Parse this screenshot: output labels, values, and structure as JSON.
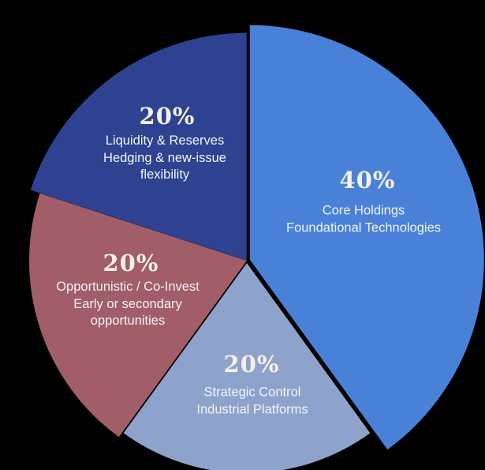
{
  "background_color": "#000000",
  "text_colors": {
    "percent_numerals": "#F6F1E6",
    "description_labels": "#F3F4F8"
  },
  "chart_data": {
    "type": "pie",
    "title": "",
    "total_percent": 100,
    "start_angle_deg": 0,
    "direction": "clockwise",
    "legend": "none (labels placed inside slices)",
    "slices": [
      {
        "name": "Core Holdings",
        "value": 40,
        "percent_label": "40%",
        "desc_lines": [
          "Core Holdings",
          "Foundational Technologies"
        ],
        "color": "#4A81D8"
      },
      {
        "name": "Strategic Control",
        "value": 20,
        "percent_label": "20%",
        "desc_lines": [
          "Strategic Control",
          "Industrial Platforms"
        ],
        "color": "#8DA3CC"
      },
      {
        "name": "Opportunistic / Co-Invest",
        "value": 20,
        "percent_label": "20%",
        "desc_lines": [
          "Opportunistic / Co-Invest",
          "Early or secondary",
          "opportunities"
        ],
        "color": "#A15D68"
      },
      {
        "name": "Liquidity & Reserves",
        "value": 20,
        "percent_label": "20%",
        "desc_lines": [
          "Liquidity & Reserves",
          "Hedging & new-issue",
          "flexibility"
        ],
        "color": "#2E4291"
      }
    ]
  }
}
